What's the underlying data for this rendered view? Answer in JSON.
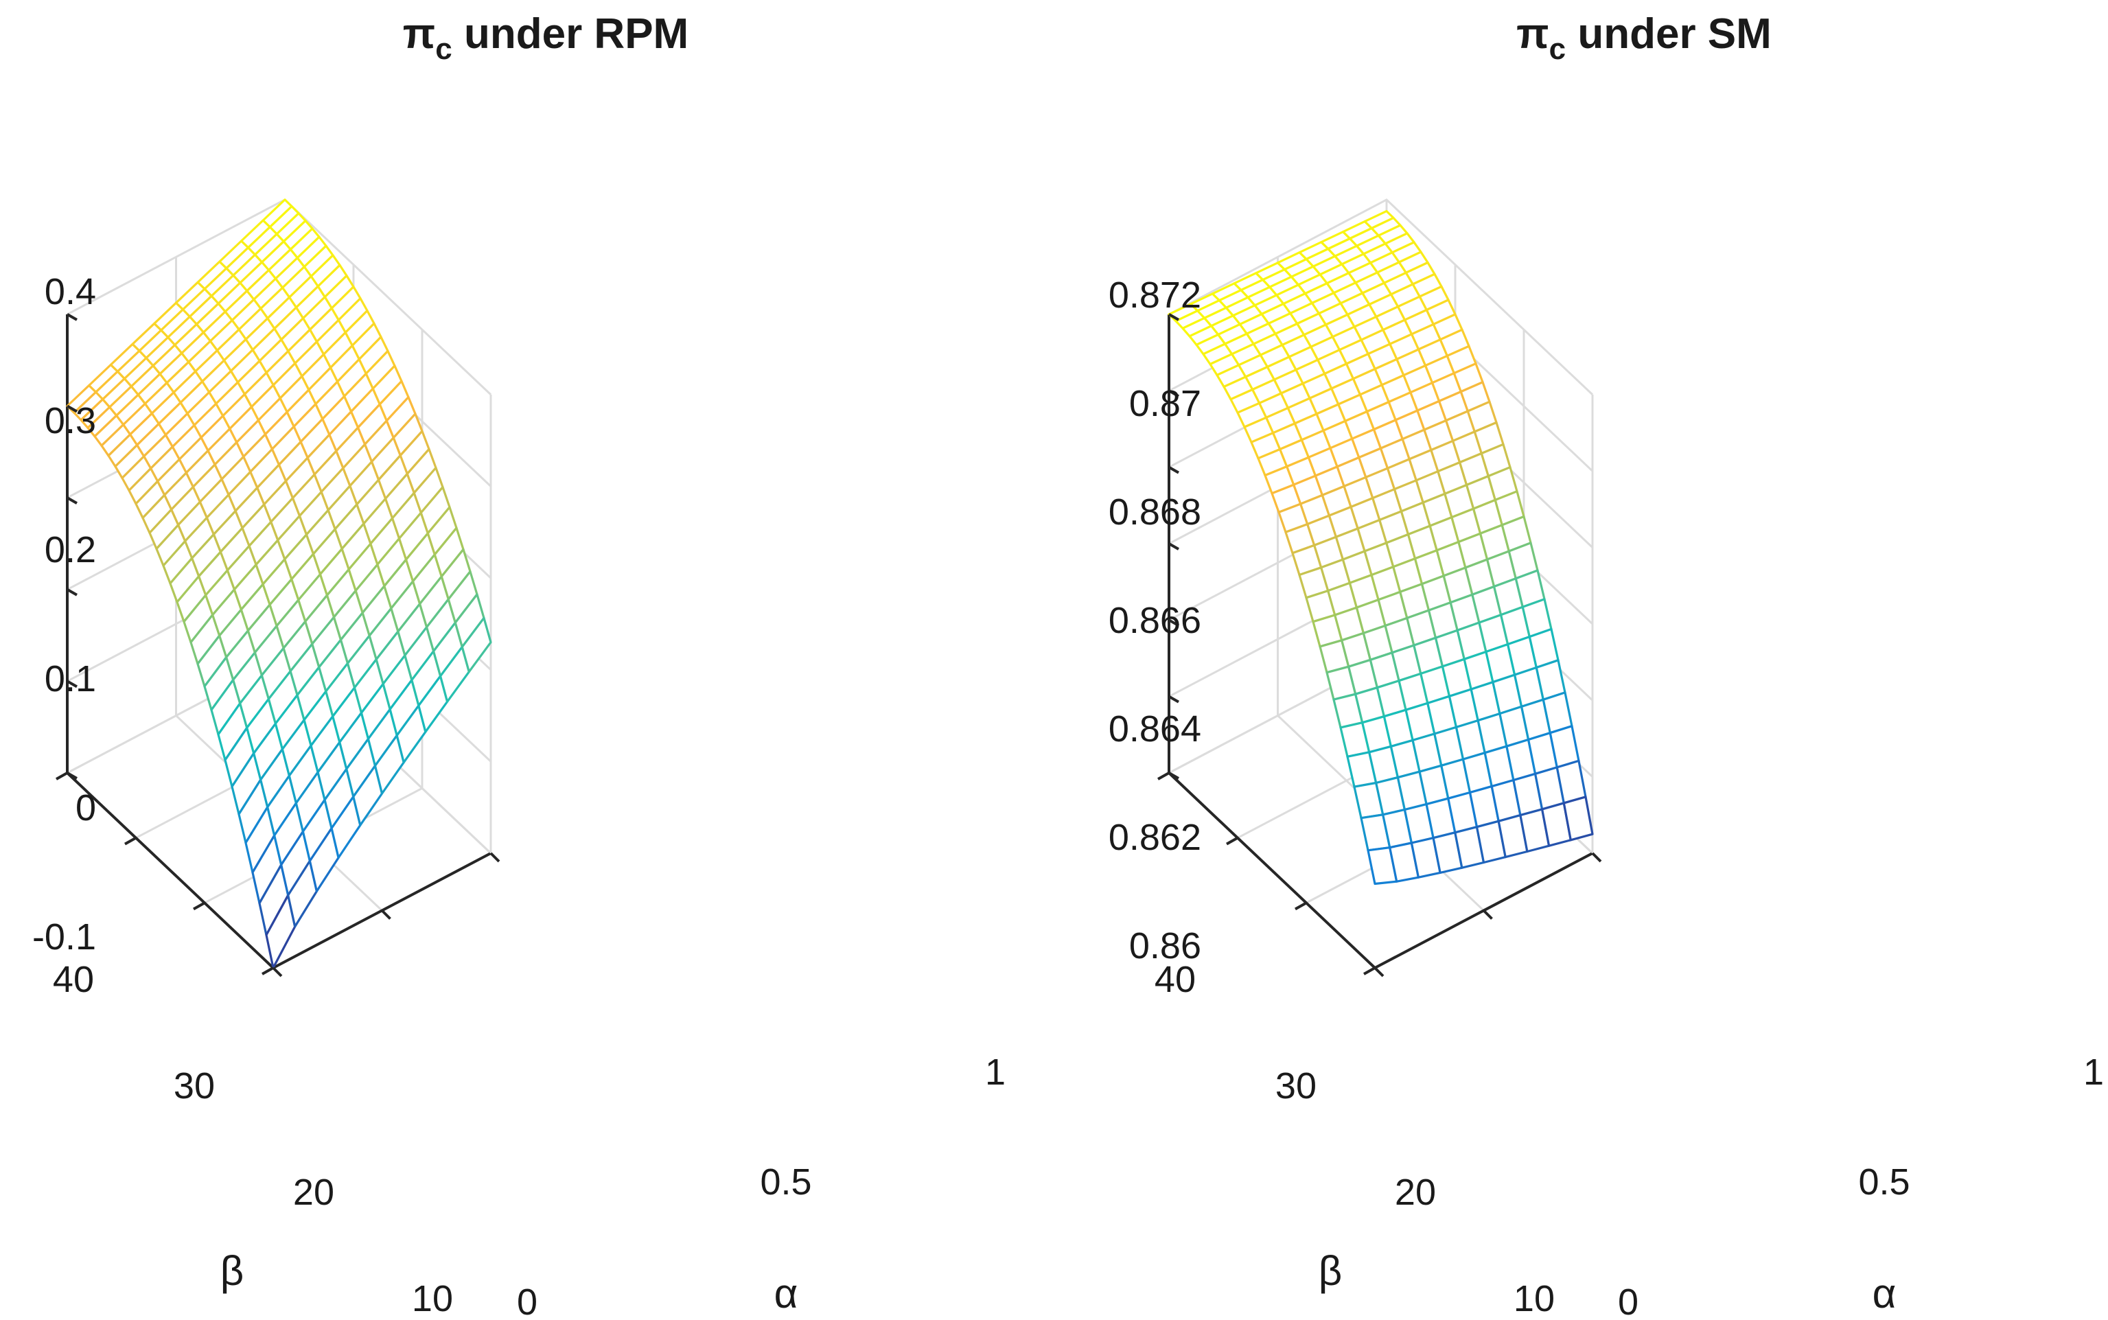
{
  "chart_data": [
    {
      "type": "surface",
      "title_main": "π",
      "title_sub": "c",
      "title_rest": " under RPM",
      "xlabel": "α",
      "ylabel": "β",
      "zlabel": "",
      "xlim": [
        0,
        1
      ],
      "ylim": [
        10,
        40
      ],
      "zlim": [
        -0.1,
        0.4
      ],
      "x_ticks": [
        "0",
        "0.5",
        "1"
      ],
      "y_ticks": [
        "10",
        "20",
        "30",
        "40"
      ],
      "z_ticks": [
        "-0.1",
        "0",
        "0.1",
        "0.2",
        "0.3",
        "0.4"
      ],
      "grid_n": [
        11,
        31
      ],
      "corner_values": {
        "a0_b10": -0.1,
        "a1_b10": 0.13,
        "a0_b40": 0.3,
        "a1_b40": 0.4
      },
      "colormap": "parula"
    },
    {
      "type": "surface",
      "title_main": "π",
      "title_sub": "c",
      "title_rest": " under SM",
      "xlabel": "α",
      "ylabel": "β",
      "zlabel": "",
      "xlim": [
        0,
        1
      ],
      "ylim": [
        10,
        40
      ],
      "zlim": [
        0.86,
        0.872
      ],
      "x_ticks": [
        "0",
        "0.5",
        "1"
      ],
      "y_ticks": [
        "10",
        "20",
        "30",
        "40"
      ],
      "z_ticks": [
        "0.86",
        "0.862",
        "0.864",
        "0.866",
        "0.868",
        "0.87",
        "0.872"
      ],
      "grid_n": [
        11,
        31
      ],
      "corner_values": {
        "a0_b10": 0.8622,
        "a1_b10": 0.8605,
        "a0_b40": 0.872,
        "a1_b40": 0.8717
      },
      "colormap": "parula"
    }
  ]
}
